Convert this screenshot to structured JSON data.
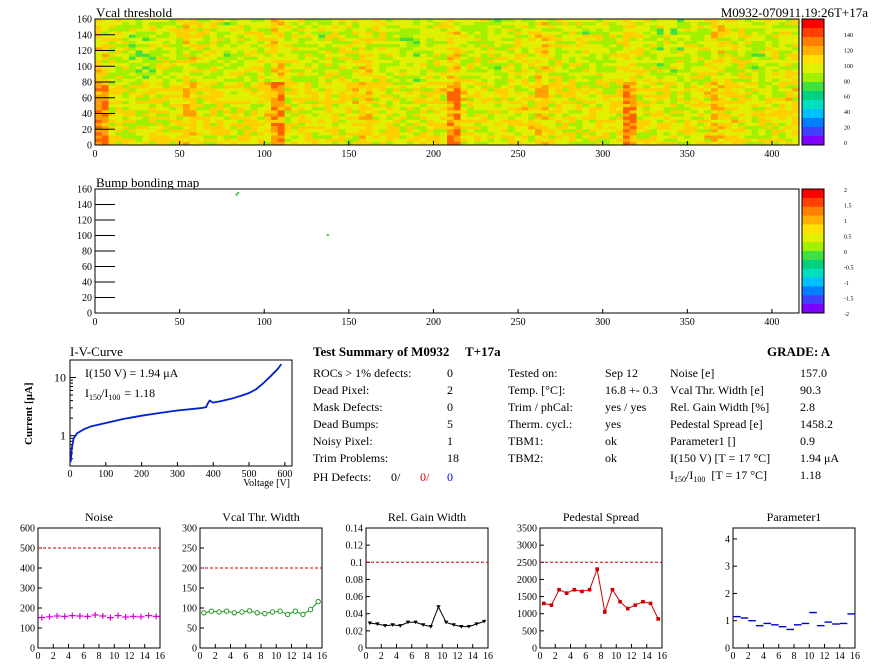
{
  "module_id": "M0932-070911.19:26T+17a",
  "heatmap": {
    "title": "Vcal threshold",
    "xlim": [
      0,
      416
    ],
    "ylim": [
      0,
      160
    ],
    "xticks": [
      0,
      50,
      100,
      150,
      200,
      250,
      300,
      350,
      400
    ],
    "yticks": [
      0,
      20,
      40,
      60,
      80,
      100,
      120,
      140,
      160
    ],
    "palette_ticks": [
      "0",
      "20",
      "40",
      "60",
      "80",
      "100",
      "120",
      "140"
    ]
  },
  "bumpmap": {
    "title": "Bump bonding map",
    "xticks": [
      0,
      50,
      100,
      150,
      200,
      250,
      300,
      350,
      400
    ],
    "yticks": [
      0,
      20,
      40,
      60,
      80,
      100,
      120,
      140,
      160
    ],
    "palette_ticks": [
      "2",
      "1.5",
      "1",
      "0.5",
      "0",
      "-0.5",
      "-1",
      "-1.5",
      "-2"
    ],
    "points": [
      [
        83,
        154
      ],
      [
        84,
        156
      ],
      [
        137,
        102
      ]
    ]
  },
  "iv": {
    "title": "I-V-Curve",
    "ylabel": "Current [μA]",
    "xlabel": "Voltage [V]",
    "ann1": "I(150 V) = 1.94 μA",
    "ann2_main": "I",
    "ann2_sub1": "150",
    "ann2_sep": "/I",
    "ann2_sub2": "100",
    "ann2_val": "= 1.18",
    "xticks": [
      0,
      100,
      200,
      300,
      400,
      500,
      600
    ],
    "ytick_labels": [
      "1",
      "10"
    ],
    "curve": [
      [
        2,
        0.35
      ],
      [
        5,
        0.6
      ],
      [
        10,
        0.9
      ],
      [
        20,
        1.1
      ],
      [
        40,
        1.3
      ],
      [
        60,
        1.45
      ],
      [
        80,
        1.55
      ],
      [
        100,
        1.65
      ],
      [
        150,
        1.94
      ],
      [
        200,
        2.2
      ],
      [
        250,
        2.45
      ],
      [
        300,
        2.7
      ],
      [
        350,
        2.9
      ],
      [
        370,
        3.0
      ],
      [
        380,
        3.1
      ],
      [
        385,
        3.6
      ],
      [
        390,
        4.0
      ],
      [
        400,
        3.7
      ],
      [
        420,
        3.9
      ],
      [
        450,
        4.3
      ],
      [
        480,
        4.9
      ],
      [
        500,
        5.4
      ],
      [
        520,
        6.3
      ],
      [
        540,
        8.0
      ],
      [
        560,
        10.5
      ],
      [
        580,
        14.0
      ],
      [
        590,
        17.0
      ]
    ]
  },
  "summary": {
    "title": "Test Summary of M0932",
    "tplus": "T+17a",
    "grade": "GRADE:  A",
    "col1": [
      {
        "label": "ROCs > 1% defects:",
        "value": "0"
      },
      {
        "label": "Dead Pixel:",
        "value": "2"
      },
      {
        "label": "Mask Defects:",
        "value": "0"
      },
      {
        "label": "Dead Bumps:",
        "value": "5"
      },
      {
        "label": "Noisy Pixel:",
        "value": "1"
      },
      {
        "label": "Trim Problems:",
        "value": "18"
      }
    ],
    "ph_label": "PH Defects:",
    "ph_values": [
      "0/",
      "0/",
      "0"
    ],
    "col2": [
      {
        "label": "Tested on:",
        "value": "Sep 12"
      },
      {
        "label": "Temp. [°C]:",
        "value": "16.8 +- 0.3"
      },
      {
        "label": "Trim / phCal:",
        "value": "yes / yes"
      },
      {
        "label": "Therm. cycl.:",
        "value": "yes"
      },
      {
        "label": "TBM1:",
        "value": "ok"
      },
      {
        "label": "TBM2:",
        "value": "ok"
      }
    ],
    "col3": [
      {
        "label": "Noise [e]",
        "value": "157.0"
      },
      {
        "label": "Vcal Thr. Width [e]",
        "value": "90.3"
      },
      {
        "label": "Rel. Gain Width [%]",
        "value": "2.8"
      },
      {
        "label": "Pedestal Spread [e]",
        "value": "1458.2"
      },
      {
        "label": "Parameter1 []",
        "value": "0.9"
      },
      {
        "label": "I(150 V) [T = 17 °C]",
        "value": "1.94 μA"
      }
    ],
    "ratio_label": "[T = 17 °C]",
    "ratio_value": "1.18"
  },
  "colors": {
    "noise": "#dd00dd",
    "vcal": "#229922",
    "gain": "#000000",
    "ped": "#cc0000",
    "par1": "#0000cc",
    "limit": "#cc0000"
  },
  "chart_data": [
    {
      "type": "scatter",
      "title": "Noise",
      "x": [
        0,
        1,
        2,
        3,
        4,
        5,
        6,
        7,
        8,
        9,
        10,
        11,
        12,
        13,
        14,
        15
      ],
      "values": [
        152,
        156,
        160,
        158,
        162,
        160,
        158,
        165,
        160,
        152,
        162,
        155,
        158,
        156,
        162,
        158
      ],
      "ylim": [
        0,
        600
      ],
      "yticks": [
        0,
        100,
        200,
        300,
        400,
        500,
        600
      ],
      "limit": 500
    },
    {
      "type": "line",
      "title": "Vcal Thr. Width",
      "x": [
        0,
        1,
        2,
        3,
        4,
        5,
        6,
        7,
        8,
        9,
        10,
        11,
        12,
        13,
        14,
        15
      ],
      "values": [
        88,
        92,
        90,
        92,
        88,
        90,
        93,
        88,
        86,
        90,
        92,
        84,
        92,
        84,
        96,
        116
      ],
      "ylim": [
        0,
        300
      ],
      "yticks": [
        0,
        50,
        100,
        150,
        200,
        250,
        300
      ],
      "limit": 200
    },
    {
      "type": "line",
      "title": "Rel. Gain Width",
      "x": [
        0,
        1,
        2,
        3,
        4,
        5,
        6,
        7,
        8,
        9,
        10,
        11,
        12,
        13,
        14,
        15
      ],
      "values": [
        0.029,
        0.028,
        0.026,
        0.027,
        0.026,
        0.03,
        0.03,
        0.027,
        0.025,
        0.048,
        0.03,
        0.027,
        0.025,
        0.025,
        0.028,
        0.031
      ],
      "ylim": [
        0,
        0.14
      ],
      "yticks": [
        0,
        0.02,
        0.04,
        0.06,
        0.08,
        0.1,
        0.12,
        0.14
      ],
      "ytick_labels": [
        "0",
        "0.02",
        "0.04",
        "0.06",
        "0.08",
        "0.1",
        "0.12",
        "0.14"
      ],
      "limit": 0.1
    },
    {
      "type": "line",
      "title": "Pedestal Spread",
      "x": [
        0,
        1,
        2,
        3,
        4,
        5,
        6,
        7,
        8,
        9,
        10,
        11,
        12,
        13,
        14,
        15
      ],
      "values": [
        1300,
        1250,
        1700,
        1600,
        1700,
        1650,
        1700,
        2300,
        1050,
        1700,
        1350,
        1150,
        1250,
        1350,
        1300,
        850
      ],
      "ylim": [
        0,
        3500
      ],
      "yticks": [
        0,
        500,
        1000,
        1500,
        2000,
        2500,
        3000,
        3500
      ],
      "limit": 2500
    },
    {
      "type": "scatter",
      "title": "Parameter1",
      "x": [
        0,
        1,
        2,
        3,
        4,
        5,
        6,
        7,
        8,
        9,
        10,
        11,
        12,
        13,
        14,
        15
      ],
      "values": [
        1.15,
        1.1,
        1.0,
        0.82,
        0.9,
        0.85,
        0.78,
        0.68,
        0.85,
        0.9,
        1.3,
        0.82,
        0.95,
        0.88,
        0.9,
        1.25
      ],
      "ylim": [
        0,
        4.4
      ],
      "yticks": [
        0,
        1,
        2,
        3,
        4
      ]
    }
  ]
}
